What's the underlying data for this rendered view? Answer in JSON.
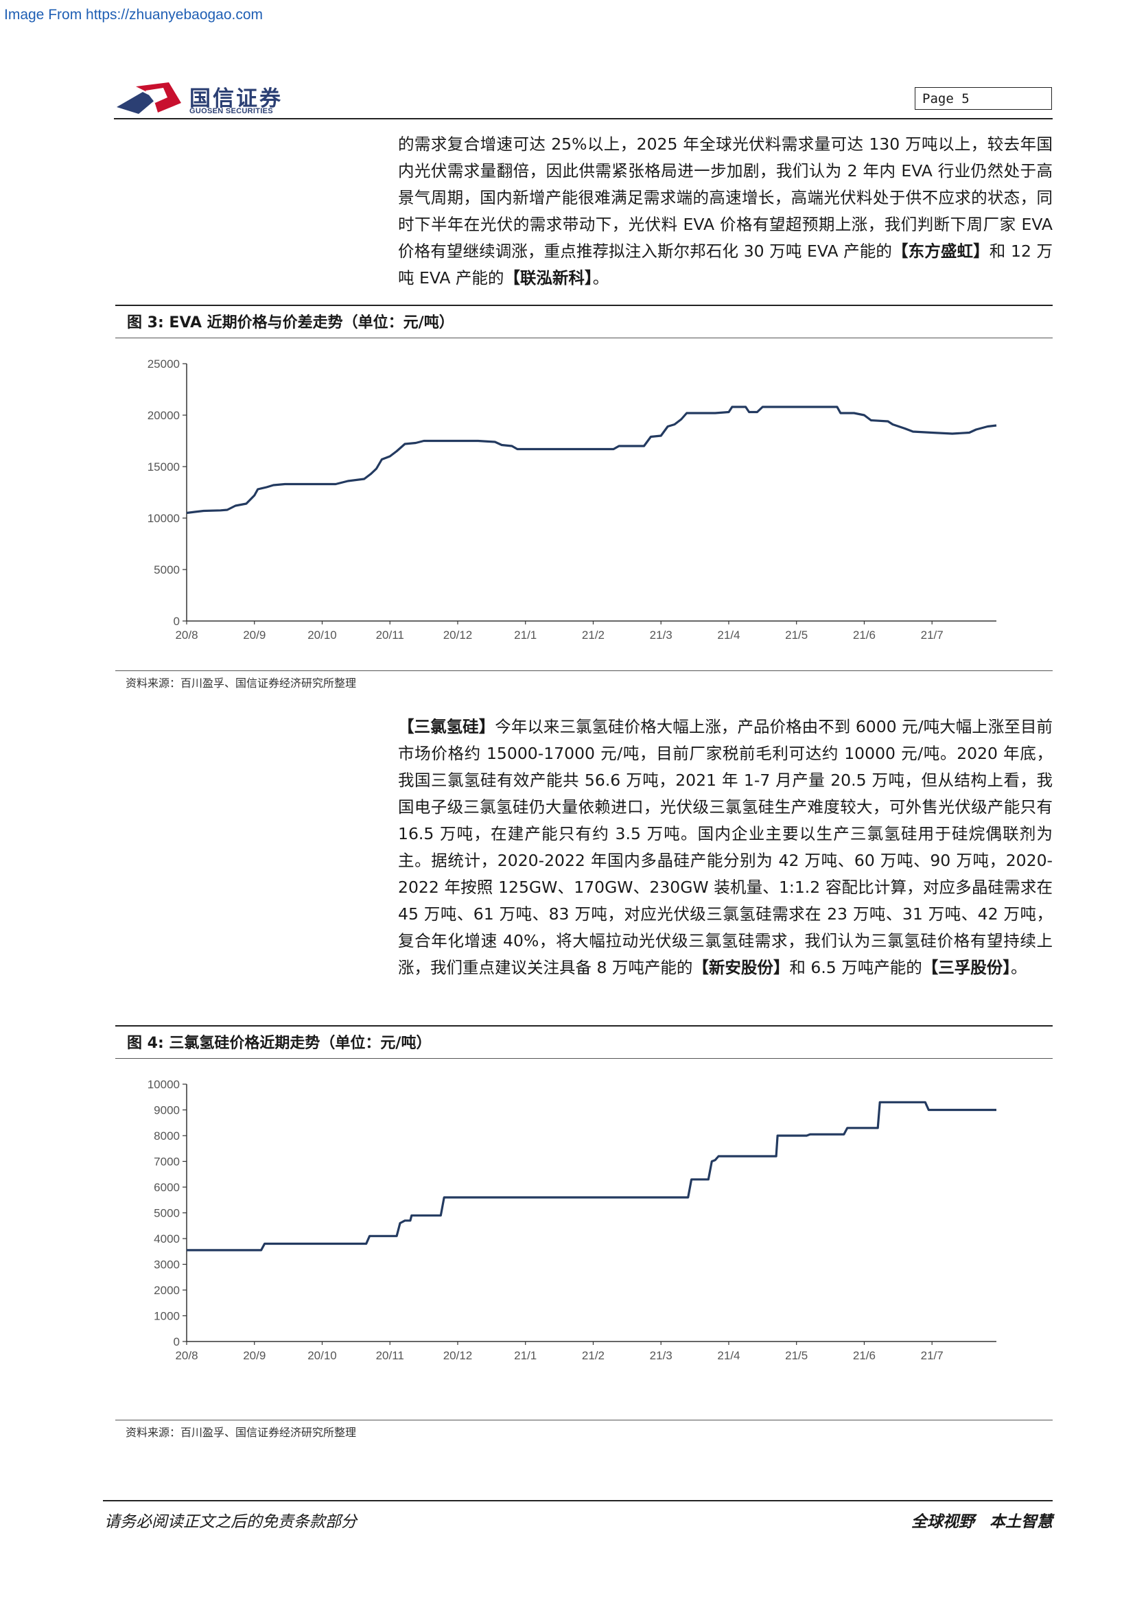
{
  "source_banner": "Image From https://zhuanyebaogao.com",
  "header": {
    "logo_cn": "国信证券",
    "logo_en": "GUOSEN SECURITIES",
    "page_label": "Page  5"
  },
  "para1": {
    "text_a": "的需求复合增速可达 25%以上，2025 年全球光伏料需求量可达 130 万吨以上，较去年国内光伏需求量翻倍，因此供需紧张格局进一步加剧，我们认为 2 年内 EVA 行业仍然处于高景气周期，国内新增产能很难满足需求端的高速增长，高端光伏料处于供不应求的状态，同时下半年在光伏的需求带动下，光伏料 EVA 价格有望超预期上涨，我们判断下周厂家 EVA 价格有望继续调涨，重点推荐拟注入斯尔邦石化 30 万吨 EVA 产能的",
    "company_a": "【东方盛虹】",
    "text_b": "和 12 万吨 EVA 产能的",
    "company_b": "【联泓新科】",
    "text_c": "。"
  },
  "figure3": {
    "title": "图  3:  EVA 近期价格与价差走势（单位：元/吨）",
    "source": "资料来源：百川盈孚、国信证券经济研究所整理"
  },
  "para2": {
    "lead": "【三氯氢硅】",
    "text_a": "今年以来三氯氢硅价格大幅上涨，产品价格由不到 6000 元/吨大幅上涨至目前市场价格约 15000-17000 元/吨，目前厂家税前毛利可达约 10000 元/吨。2020 年底，我国三氯氢硅有效产能共 56.6 万吨，2021 年 1-7 月产量 20.5 万吨，但从结构上看，我国电子级三氯氢硅仍大量依赖进口，光伏级三氯氢硅生产难度较大，可外售光伏级产能只有 16.5 万吨，在建产能只有约 3.5 万吨。国内企业主要以生产三氯氢硅用于硅烷偶联剂为主。据统计，2020-2022 年国内多晶硅产能分别为 42 万吨、60 万吨、90 万吨，2020-2022 年按照 125GW、170GW、230GW 装机量、1:1.2 容配比计算，对应多晶硅需求在 45 万吨、61 万吨、83 万吨，对应光伏级三氯氢硅需求在 23 万吨、31 万吨、42 万吨，复合年化增速 40%，将大幅拉动光伏级三氯氢硅需求，我们认为三氯氢硅价格有望持续上涨，我们重点建议关注具备 8 万吨产能的",
    "company_a": "【新安股份】",
    "text_b": "和 6.5 万吨产能的",
    "company_b": "【三孚股份】",
    "text_c": "。"
  },
  "figure4": {
    "title": "图  4:  三氯氢硅价格近期走势（单位：元/吨）",
    "source": "资料来源：百川盈孚、国信证券经济研究所整理"
  },
  "footer": {
    "disclaimer": "请务必阅读正文之后的免责条款部分",
    "slogan_a": "全球视野",
    "slogan_b": "本土智慧"
  },
  "colors": {
    "line": "#233a60",
    "axis": "#333333"
  },
  "chart_data": [
    {
      "type": "line",
      "title": "",
      "categories": [
        "20/8",
        "20/9",
        "20/10",
        "20/11",
        "20/12",
        "21/1",
        "21/2",
        "21/3",
        "21/4",
        "21/5",
        "21/6",
        "21/7"
      ],
      "ylim": [
        0,
        25000
      ],
      "yticks": [
        0,
        5000,
        10000,
        15000,
        20000,
        25000
      ],
      "x_range": [
        0,
        11.95
      ],
      "series": [
        {
          "values": [
            [
              0,
              10500
            ],
            [
              0.12,
              10600
            ],
            [
              0.25,
              10700
            ],
            [
              0.5,
              10750
            ],
            [
              0.6,
              10800
            ],
            [
              0.72,
              11200
            ],
            [
              0.88,
              11400
            ],
            [
              1.0,
              12200
            ],
            [
              1.05,
              12800
            ],
            [
              1.18,
              13000
            ],
            [
              1.28,
              13200
            ],
            [
              1.45,
              13300
            ],
            [
              2.2,
              13300
            ],
            [
              2.38,
              13600
            ],
            [
              2.62,
              13800
            ],
            [
              2.72,
              14300
            ],
            [
              2.8,
              14800
            ],
            [
              2.88,
              15700
            ],
            [
              3.0,
              16000
            ],
            [
              3.1,
              16500
            ],
            [
              3.22,
              17200
            ],
            [
              3.38,
              17300
            ],
            [
              3.5,
              17500
            ],
            [
              3.9,
              17500
            ],
            [
              4.3,
              17500
            ],
            [
              4.55,
              17400
            ],
            [
              4.65,
              17100
            ],
            [
              4.8,
              17000
            ],
            [
              4.88,
              16700
            ],
            [
              5.2,
              16700
            ],
            [
              6.0,
              16700
            ],
            [
              6.3,
              16700
            ],
            [
              6.38,
              17000
            ],
            [
              6.75,
              17000
            ],
            [
              6.85,
              17900
            ],
            [
              7.0,
              18000
            ],
            [
              7.1,
              18900
            ],
            [
              7.2,
              19100
            ],
            [
              7.3,
              19600
            ],
            [
              7.38,
              20200
            ],
            [
              7.55,
              20200
            ],
            [
              7.8,
              20200
            ],
            [
              8.0,
              20300
            ],
            [
              8.05,
              20800
            ],
            [
              8.25,
              20800
            ],
            [
              8.3,
              20300
            ],
            [
              8.42,
              20300
            ],
            [
              8.5,
              20800
            ],
            [
              9.0,
              20800
            ],
            [
              9.5,
              20800
            ],
            [
              9.6,
              20800
            ],
            [
              9.65,
              20200
            ],
            [
              9.85,
              20200
            ],
            [
              10.0,
              20000
            ],
            [
              10.1,
              19500
            ],
            [
              10.35,
              19400
            ],
            [
              10.42,
              19100
            ],
            [
              10.6,
              18700
            ],
            [
              10.72,
              18400
            ],
            [
              11.0,
              18300
            ],
            [
              11.3,
              18200
            ],
            [
              11.55,
              18300
            ],
            [
              11.65,
              18600
            ],
            [
              11.82,
              18900
            ],
            [
              11.95,
              19000
            ]
          ]
        }
      ]
    },
    {
      "type": "line",
      "title": "",
      "categories": [
        "20/8",
        "20/9",
        "20/10",
        "20/11",
        "20/12",
        "21/1",
        "21/2",
        "21/3",
        "21/4",
        "21/5",
        "21/6",
        "21/7"
      ],
      "ylim": [
        0,
        10000
      ],
      "yticks": [
        0,
        1000,
        2000,
        3000,
        4000,
        5000,
        6000,
        7000,
        8000,
        9000,
        10000
      ],
      "x_range": [
        0,
        11.95
      ],
      "series": [
        {
          "values": [
            [
              0,
              3550
            ],
            [
              1.1,
              3550
            ],
            [
              1.15,
              3800
            ],
            [
              2.65,
              3800
            ],
            [
              2.7,
              4100
            ],
            [
              3.1,
              4100
            ],
            [
              3.15,
              4600
            ],
            [
              3.22,
              4700
            ],
            [
              3.3,
              4700
            ],
            [
              3.32,
              4900
            ],
            [
              3.75,
              4900
            ],
            [
              3.8,
              5600
            ],
            [
              7.4,
              5600
            ],
            [
              7.45,
              6300
            ],
            [
              7.7,
              6300
            ],
            [
              7.75,
              7000
            ],
            [
              7.8,
              7050
            ],
            [
              7.85,
              7200
            ],
            [
              8.7,
              7200
            ],
            [
              8.72,
              8000
            ],
            [
              9.15,
              8000
            ],
            [
              9.2,
              8050
            ],
            [
              9.7,
              8050
            ],
            [
              9.75,
              8300
            ],
            [
              10.2,
              8300
            ],
            [
              10.23,
              9300
            ],
            [
              10.9,
              9300
            ],
            [
              10.95,
              9000
            ],
            [
              11.95,
              9000
            ]
          ]
        }
      ]
    }
  ]
}
